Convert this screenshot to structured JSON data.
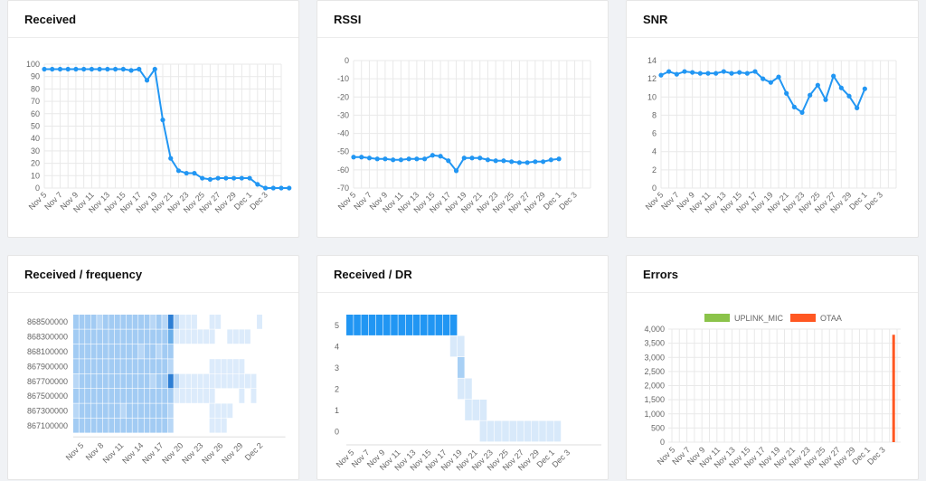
{
  "colors": {
    "line": "#2196F3",
    "grid": "#e9e9e9",
    "uplink_mic": "#8BC34A",
    "otaa": "#FF5722"
  },
  "dates": [
    "Nov 5",
    "Nov 7",
    "Nov 9",
    "Nov 11",
    "Nov 13",
    "Nov 15",
    "Nov 17",
    "Nov 19",
    "Nov 21",
    "Nov 23",
    "Nov 25",
    "Nov 27",
    "Nov 29",
    "Dec 1",
    "Dec 3"
  ],
  "titles": {
    "received": "Received",
    "rssi": "RSSI",
    "snr": "SNR",
    "freq": "Received / frequency",
    "dr": "Received / DR",
    "errors": "Errors"
  },
  "chart_data": [
    {
      "type": "line",
      "title": "Received",
      "x_start": "Nov 5",
      "x_end": "Dec 4",
      "ylim": [
        0,
        100
      ],
      "yticks": [
        0,
        10,
        20,
        30,
        40,
        50,
        60,
        70,
        80,
        90,
        100
      ],
      "values": [
        96,
        96,
        96,
        96,
        96,
        96,
        96,
        96,
        96,
        96,
        96,
        95,
        96,
        87,
        96,
        55,
        24,
        14,
        12,
        12,
        8,
        7,
        8,
        8,
        8,
        8,
        8,
        3,
        0,
        0,
        0,
        0
      ]
    },
    {
      "type": "line",
      "title": "RSSI",
      "x_start": "Nov 5",
      "x_end": "Dec 4",
      "ylim": [
        -70,
        0
      ],
      "yticks": [
        -70,
        -60,
        -50,
        -40,
        -30,
        -20,
        -10,
        0
      ],
      "values": [
        -53,
        -53,
        -53.5,
        -54,
        -54,
        -54.5,
        -54.5,
        -54,
        -54,
        -54,
        -52,
        -52.5,
        -55,
        -60.5,
        -53.5,
        -53.5,
        -53.5,
        -54.5,
        -55,
        -55,
        -55.5,
        -56,
        -56,
        -55.5,
        -55.5,
        -54.5,
        -54
      ]
    },
    {
      "type": "line",
      "title": "SNR",
      "x_start": "Nov 5",
      "x_end": "Dec 4",
      "ylim": [
        0,
        14
      ],
      "yticks": [
        0,
        2,
        4,
        6,
        8,
        10,
        12,
        14
      ],
      "values": [
        12.4,
        12.8,
        12.5,
        12.8,
        12.7,
        12.6,
        12.6,
        12.6,
        12.8,
        12.6,
        12.7,
        12.6,
        12.8,
        12,
        11.6,
        12.2,
        10.4,
        8.9,
        8.3,
        10.2,
        11.3,
        9.7,
        12.3,
        11,
        10.1,
        8.8,
        10.9
      ]
    },
    {
      "type": "heatmap",
      "title": "Received / frequency",
      "rows": [
        "868500000",
        "868300000",
        "868100000",
        "867900000",
        "867700000",
        "867500000",
        "867300000",
        "867100000"
      ],
      "x_ticks": [
        "Nov 5",
        "Nov 8",
        "Nov 11",
        "Nov 14",
        "Nov 17",
        "Nov 20",
        "Nov 23",
        "Nov 26",
        "Nov 29",
        "Dec 2"
      ],
      "matrix": [
        [
          3,
          3,
          3,
          3,
          2,
          3,
          3,
          3,
          3,
          3,
          3,
          3,
          3,
          2,
          3,
          2,
          5,
          2,
          1,
          1,
          1,
          0,
          0,
          1,
          1,
          0,
          0,
          0,
          0,
          0,
          0,
          1
        ],
        [
          3,
          3,
          3,
          3,
          3,
          3,
          3,
          3,
          3,
          3,
          3,
          3,
          3,
          3,
          3,
          3,
          4,
          1,
          1,
          1,
          1,
          1,
          1,
          1,
          0,
          0,
          1,
          1,
          1,
          1,
          0,
          0
        ],
        [
          3,
          3,
          3,
          3,
          3,
          3,
          3,
          3,
          3,
          3,
          3,
          2,
          3,
          3,
          2,
          3,
          3,
          0,
          0,
          0,
          0,
          0,
          0,
          0,
          0,
          0,
          0,
          0,
          0,
          0,
          0,
          0
        ],
        [
          3,
          3,
          3,
          3,
          3,
          3,
          3,
          3,
          3,
          3,
          3,
          3,
          3,
          3,
          3,
          3,
          2,
          0,
          0,
          0,
          0,
          0,
          0,
          1,
          1,
          1,
          1,
          1,
          1,
          0,
          0,
          0
        ],
        [
          2,
          3,
          3,
          3,
          3,
          3,
          3,
          3,
          3,
          3,
          3,
          3,
          3,
          2,
          3,
          3,
          5,
          2,
          1,
          1,
          1,
          1,
          1,
          1,
          1,
          1,
          1,
          1,
          1,
          1,
          1,
          0
        ],
        [
          3,
          3,
          3,
          3,
          3,
          3,
          3,
          3,
          3,
          3,
          3,
          3,
          3,
          3,
          3,
          3,
          3,
          1,
          1,
          1,
          1,
          1,
          1,
          1,
          0,
          0,
          0,
          0,
          1,
          0,
          1,
          0
        ],
        [
          2,
          3,
          3,
          3,
          3,
          3,
          3,
          3,
          2,
          3,
          3,
          3,
          3,
          3,
          3,
          3,
          2,
          0,
          0,
          0,
          0,
          0,
          0,
          1,
          1,
          1,
          1,
          0,
          0,
          0,
          0,
          0
        ],
        [
          3,
          3,
          3,
          3,
          3,
          3,
          3,
          3,
          3,
          3,
          3,
          3,
          3,
          3,
          3,
          3,
          2,
          0,
          0,
          0,
          0,
          0,
          0,
          1,
          1,
          1,
          0,
          0,
          0,
          0,
          0,
          0
        ]
      ]
    },
    {
      "type": "heatmap",
      "title": "Received / DR",
      "rows": [
        "5",
        "4",
        "3",
        "2",
        "1",
        "0"
      ],
      "matrix": [
        [
          3,
          3,
          3,
          3,
          3,
          3,
          3,
          3,
          3,
          3,
          3,
          3,
          3,
          3,
          3,
          0,
          0,
          0,
          0,
          0,
          0,
          0,
          0,
          0,
          0,
          0,
          0,
          0,
          0,
          0
        ],
        [
          0,
          0,
          0,
          0,
          0,
          0,
          0,
          0,
          0,
          0,
          0,
          0,
          0,
          0,
          1,
          1,
          0,
          0,
          0,
          0,
          0,
          0,
          0,
          0,
          0,
          0,
          0,
          0,
          0,
          0
        ],
        [
          0,
          0,
          0,
          0,
          0,
          0,
          0,
          0,
          0,
          0,
          0,
          0,
          0,
          0,
          0,
          2,
          0,
          0,
          0,
          0,
          0,
          0,
          0,
          0,
          0,
          0,
          0,
          0,
          0,
          0
        ],
        [
          0,
          0,
          0,
          0,
          0,
          0,
          0,
          0,
          0,
          0,
          0,
          0,
          0,
          0,
          0,
          1,
          1,
          0,
          0,
          0,
          0,
          0,
          0,
          0,
          0,
          0,
          0,
          0,
          0,
          0
        ],
        [
          0,
          0,
          0,
          0,
          0,
          0,
          0,
          0,
          0,
          0,
          0,
          0,
          0,
          0,
          0,
          0,
          1,
          1,
          1,
          0,
          0,
          0,
          0,
          0,
          0,
          0,
          0,
          0,
          0,
          0
        ],
        [
          0,
          0,
          0,
          0,
          0,
          0,
          0,
          0,
          0,
          0,
          0,
          0,
          0,
          0,
          0,
          0,
          0,
          0,
          1,
          1,
          1,
          1,
          1,
          1,
          1,
          1,
          1,
          1,
          1,
          0
        ]
      ]
    },
    {
      "type": "bar",
      "title": "Errors",
      "ylim": [
        0,
        4000
      ],
      "yticks": [
        "0",
        "500",
        "1,000",
        "1,500",
        "2,000",
        "2,500",
        "3,000",
        "3,500",
        "4,000"
      ],
      "legend": "top",
      "series": [
        {
          "name": "UPLINK_MIC",
          "values": [
            0
          ]
        },
        {
          "name": "OTAA",
          "values": [
            3800
          ],
          "at": "Dec 3"
        }
      ]
    }
  ]
}
